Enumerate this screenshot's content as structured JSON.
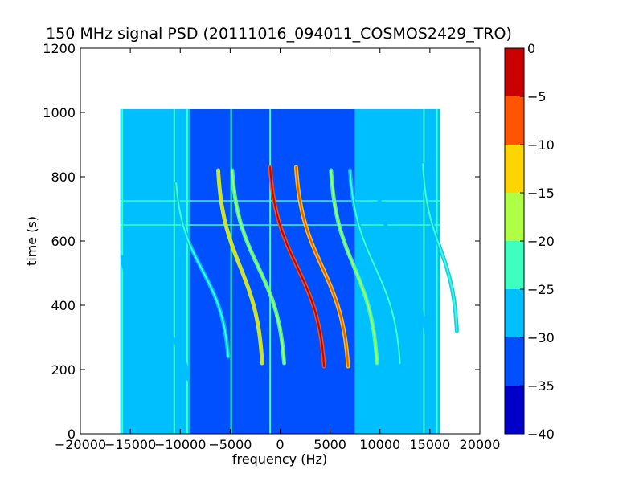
{
  "chart_data": {
    "type": "heatmap",
    "title": "150 MHz signal PSD (20111016_094011_COSMOS2429_TRO)",
    "xlabel": "frequency (Hz)",
    "ylabel": "time (s)",
    "xlim": [
      -20000,
      20000
    ],
    "ylim": [
      0,
      1200
    ],
    "x_ticks": [
      -20000,
      -15000,
      -10000,
      -5000,
      0,
      5000,
      10000,
      15000,
      20000
    ],
    "x_tick_labels": [
      "−20000",
      "−15000",
      "−10000",
      "−5000",
      "0",
      "5000",
      "10000",
      "15000",
      "20000"
    ],
    "y_ticks": [
      0,
      200,
      400,
      600,
      800,
      1000,
      1200
    ],
    "y_tick_labels": [
      "0",
      "200",
      "400",
      "600",
      "800",
      "1000",
      "1200"
    ],
    "data_extent": {
      "x": [
        -16000,
        16000
      ],
      "y": [
        0,
        1010
      ]
    },
    "background_levels": [
      {
        "x": [
          -16000,
          -9000
        ],
        "level": -30
      },
      {
        "x": [
          -9000,
          7500
        ],
        "level": -35
      },
      {
        "x": [
          7500,
          16000
        ],
        "level": -30
      }
    ],
    "vertical_lines": [
      {
        "x": -15800,
        "level": -25
      },
      {
        "x": -10600,
        "level": -25
      },
      {
        "x": -9300,
        "level": -25
      },
      {
        "x": -4900,
        "level": -25
      },
      {
        "x": -1000,
        "level": -25
      },
      {
        "x": 14400,
        "level": -25
      },
      {
        "x": 15700,
        "level": -25
      }
    ],
    "horizontal_lines": [
      {
        "y": 650,
        "level": -25
      },
      {
        "y": 725,
        "level": -25
      }
    ],
    "traces": [
      {
        "center_x": -12500,
        "center_y": 360,
        "half_width": 3300,
        "half_span": 190,
        "peak_level": -25
      },
      {
        "center_x": -7800,
        "center_y": 510,
        "half_width": 2600,
        "half_span": 270,
        "peak_level": -20
      },
      {
        "center_x": -4000,
        "center_y": 520,
        "half_width": 2200,
        "half_span": 300,
        "peak_level": -10
      },
      {
        "center_x": -2200,
        "center_y": 520,
        "half_width": 2600,
        "half_span": 300,
        "peak_level": -15
      },
      {
        "center_x": 1700,
        "center_y": 520,
        "half_width": 2700,
        "half_span": 310,
        "peak_level": 0
      },
      {
        "center_x": 4200,
        "center_y": 520,
        "half_width": 2600,
        "half_span": 310,
        "peak_level": -5
      },
      {
        "center_x": 7400,
        "center_y": 520,
        "half_width": 2300,
        "half_span": 300,
        "peak_level": -15
      },
      {
        "center_x": 9500,
        "center_y": 520,
        "half_width": 2500,
        "half_span": 300,
        "peak_level": -20
      },
      {
        "center_x": 12300,
        "center_y": 520,
        "half_width": 2800,
        "half_span": 320,
        "peak_level": -25
      },
      {
        "center_x": 16000,
        "center_y": 580,
        "half_width": 1700,
        "half_span": 260,
        "peak_level": -20
      }
    ],
    "colorbar": {
      "range": [
        -40,
        0
      ],
      "ticks": [
        0,
        -5,
        -10,
        -15,
        -20,
        -25,
        -30,
        -35,
        -40
      ],
      "tick_labels": [
        "0",
        "−5",
        "−10",
        "−15",
        "−20",
        "−25",
        "−30",
        "−35",
        "−40"
      ],
      "bands": [
        {
          "from": -40,
          "to": -35,
          "color": "#0000c8"
        },
        {
          "from": -35,
          "to": -30,
          "color": "#0050ff"
        },
        {
          "from": -30,
          "to": -25,
          "color": "#00bfff"
        },
        {
          "from": -25,
          "to": -20,
          "color": "#3dffbf"
        },
        {
          "from": -20,
          "to": -15,
          "color": "#afff47"
        },
        {
          "from": -15,
          "to": -10,
          "color": "#ffd500"
        },
        {
          "from": -10,
          "to": -5,
          "color": "#ff5500"
        },
        {
          "from": -5,
          "to": 0,
          "color": "#c80000"
        }
      ]
    }
  }
}
